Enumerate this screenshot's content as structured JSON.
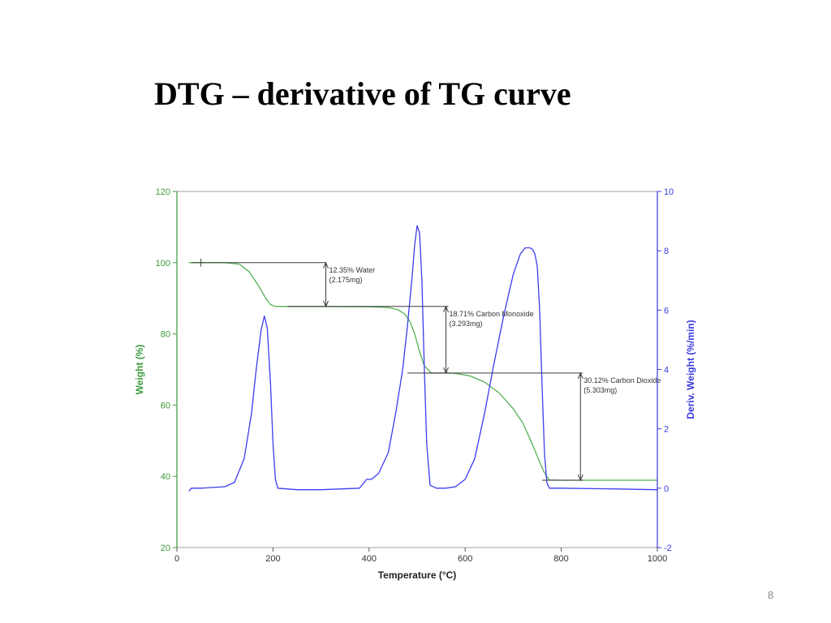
{
  "slide": {
    "title": "DTG – derivative of TG curve",
    "page_number": "8"
  },
  "colors": {
    "weight_axis": "#3a9a3a",
    "weight_curve": "#55b055",
    "deriv_axis": "#3a3ae0",
    "deriv_curve": "#3c3cf0",
    "annotation": "#3a3a3a",
    "axis_frame": "#a0a0a0"
  },
  "chart_data": {
    "type": "line",
    "title": "",
    "xlabel": "Temperature (°C)",
    "ylabel": "Weight (%)",
    "y2label": "Deriv. Weight (%/min)",
    "xlim": [
      0,
      1000
    ],
    "ylim": [
      20,
      120
    ],
    "y2lim": [
      -2,
      10
    ],
    "x_ticks": [
      "0",
      "200",
      "400",
      "600",
      "800",
      "1000"
    ],
    "y_ticks": [
      "20",
      "40",
      "60",
      "80",
      "100",
      "120"
    ],
    "y2_ticks": [
      "-2",
      "0",
      "2",
      "4",
      "6",
      "8",
      "10"
    ],
    "grid": false,
    "series": [
      {
        "axis": "left",
        "x": [
          25,
          50,
          100,
          130,
          150,
          170,
          185,
          195,
          205,
          250,
          300,
          400,
          440,
          460,
          475,
          485,
          495,
          505,
          515,
          530,
          560,
          580,
          610,
          640,
          670,
          700,
          720,
          740,
          755,
          765,
          775,
          800,
          850,
          1000
        ],
        "values": [
          100,
          100,
          100,
          99.6,
          97.5,
          93.5,
          90,
          88.2,
          87.7,
          87.7,
          87.7,
          87.6,
          87.4,
          86.8,
          85.5,
          83.5,
          80,
          75,
          71,
          69,
          69,
          68.9,
          68.2,
          66.5,
          63.5,
          59,
          55,
          49,
          44,
          41,
          39,
          38.9,
          38.9,
          38.9
        ]
      },
      {
        "axis": "right",
        "x": [
          25,
          30,
          50,
          100,
          120,
          140,
          155,
          165,
          175,
          182,
          188,
          195,
          200,
          205,
          210,
          250,
          300,
          380,
          395,
          405,
          420,
          440,
          455,
          470,
          480,
          490,
          495,
          500,
          505,
          510,
          515,
          520,
          527,
          540,
          560,
          580,
          600,
          620,
          640,
          660,
          680,
          700,
          715,
          725,
          735,
          740,
          745,
          750,
          755,
          760,
          765,
          770,
          775,
          800,
          900,
          1000
        ],
        "values": [
          -0.1,
          0,
          0,
          0.05,
          0.2,
          1,
          2.5,
          4,
          5.3,
          5.8,
          5.4,
          3.5,
          1.5,
          0.3,
          0,
          -0.05,
          -0.05,
          0,
          0.3,
          0.3,
          0.5,
          1.2,
          2.5,
          4,
          5.5,
          7.2,
          8.2,
          8.85,
          8.6,
          7,
          4,
          1.5,
          0.1,
          0,
          0,
          0.05,
          0.3,
          1,
          2.5,
          4.2,
          5.8,
          7.2,
          7.9,
          8.1,
          8.1,
          8.05,
          7.9,
          7.5,
          6,
          3.5,
          1.2,
          0.2,
          0,
          0,
          -0.02,
          -0.05
        ]
      }
    ],
    "annotations": [
      {
        "line1": "12.35% Water",
        "line2": "(2.175mg)"
      },
      {
        "line1": "18.71% Carbon Monoxide",
        "line2": "(3.293mg)"
      },
      {
        "line1": "30.12% Carbon Dioxide",
        "line2": "(5.303mg)"
      }
    ]
  }
}
